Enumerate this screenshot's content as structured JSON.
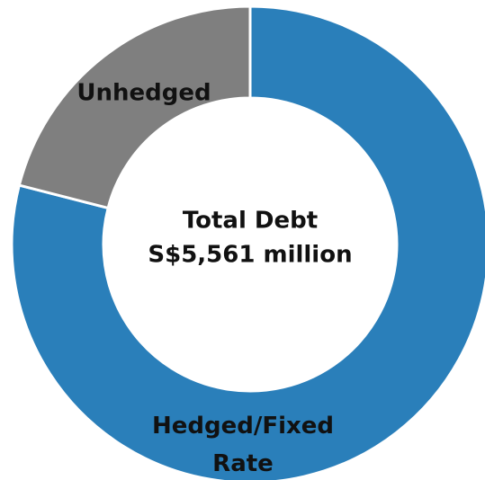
{
  "chart_data": {
    "type": "donut",
    "categories": [
      "Hedged/Fixed Rate",
      "Unhedged"
    ],
    "values": [
      79,
      21
    ],
    "colors": [
      "#2a7fba",
      "#7f7f7f"
    ],
    "center_text": [
      "Total Debt",
      "S$5,561 million"
    ]
  }
}
